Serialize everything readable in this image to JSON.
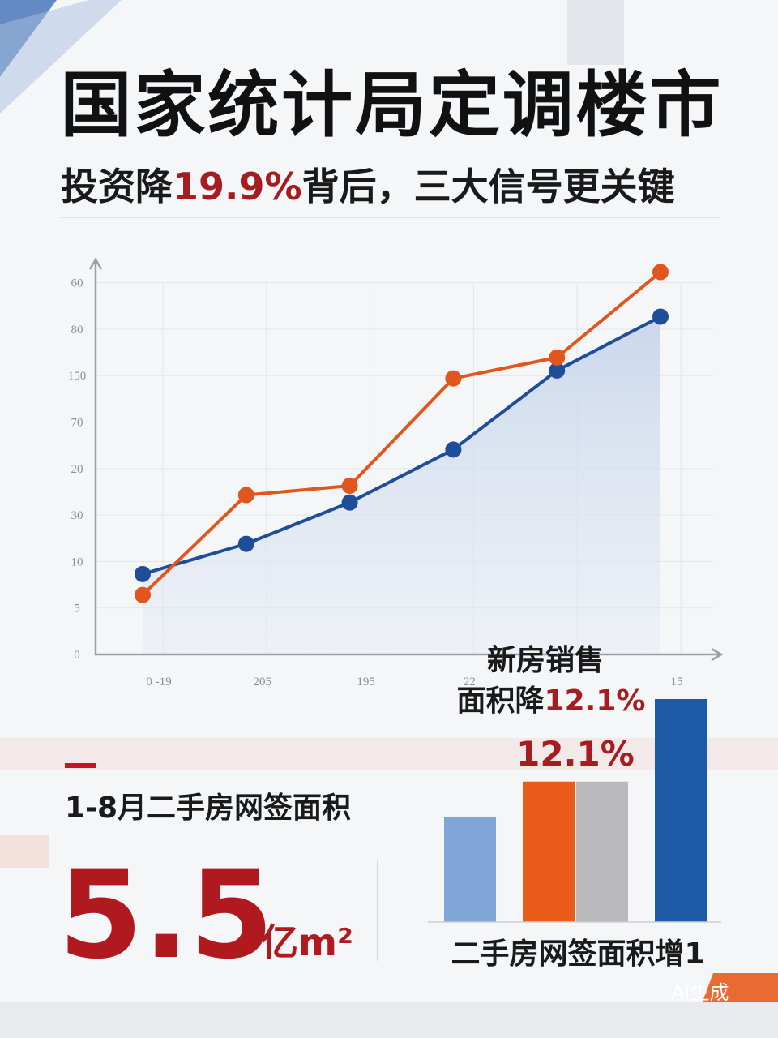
{
  "header": {
    "title": "国家统计局定调楼市",
    "subtitle_start": "投资降",
    "subtitle_highlight": "19.9%",
    "subtitle_end": "背后，三大信号更关键"
  },
  "chart_data": [
    {
      "type": "line",
      "categories": [
        "0 -19",
        "205",
        "195",
        "22",
        null,
        "15"
      ],
      "series": [
        {
          "color": "#1f4e99",
          "values": [
            17.3,
            23.8,
            32.7,
            44.1,
            61.1,
            72.7
          ]
        },
        {
          "color": "#e0561c",
          "values": [
            12.8,
            34.3,
            36.3,
            59.4,
            63.9,
            82.3
          ]
        }
      ],
      "ylim": [
        0,
        85
      ],
      "yticks": [
        0,
        {
          "value": 10,
          "label": "5"
        },
        {
          "value": 20,
          "label": "10"
        },
        30,
        {
          "value": 40,
          "label": "20"
        },
        {
          "value": 50,
          "label": "70"
        },
        {
          "value": 60,
          "label": "150"
        },
        {
          "value": 70,
          "label": "80"
        },
        {
          "value": 80,
          "label": "60"
        }
      ],
      "grid": true
    },
    {
      "type": "bar",
      "annotation_line1": "新房销售",
      "annotation_line2_start": "面积降",
      "annotation_line2_highlight": "12.1%",
      "bar_label": "12.1%",
      "xlabel": "二手房网签面积增1",
      "values": [
        47,
        63,
        63,
        100
      ],
      "colors": [
        "#7fa6d6",
        "#ea5c1a",
        "#b9b9bb",
        "#1c5aa6"
      ],
      "ylim": [
        0,
        100
      ]
    }
  ],
  "stat": {
    "label": "1-8月二手房网签面积",
    "value": "5.5",
    "unit": "亿m²"
  },
  "watermark": "AI生成"
}
